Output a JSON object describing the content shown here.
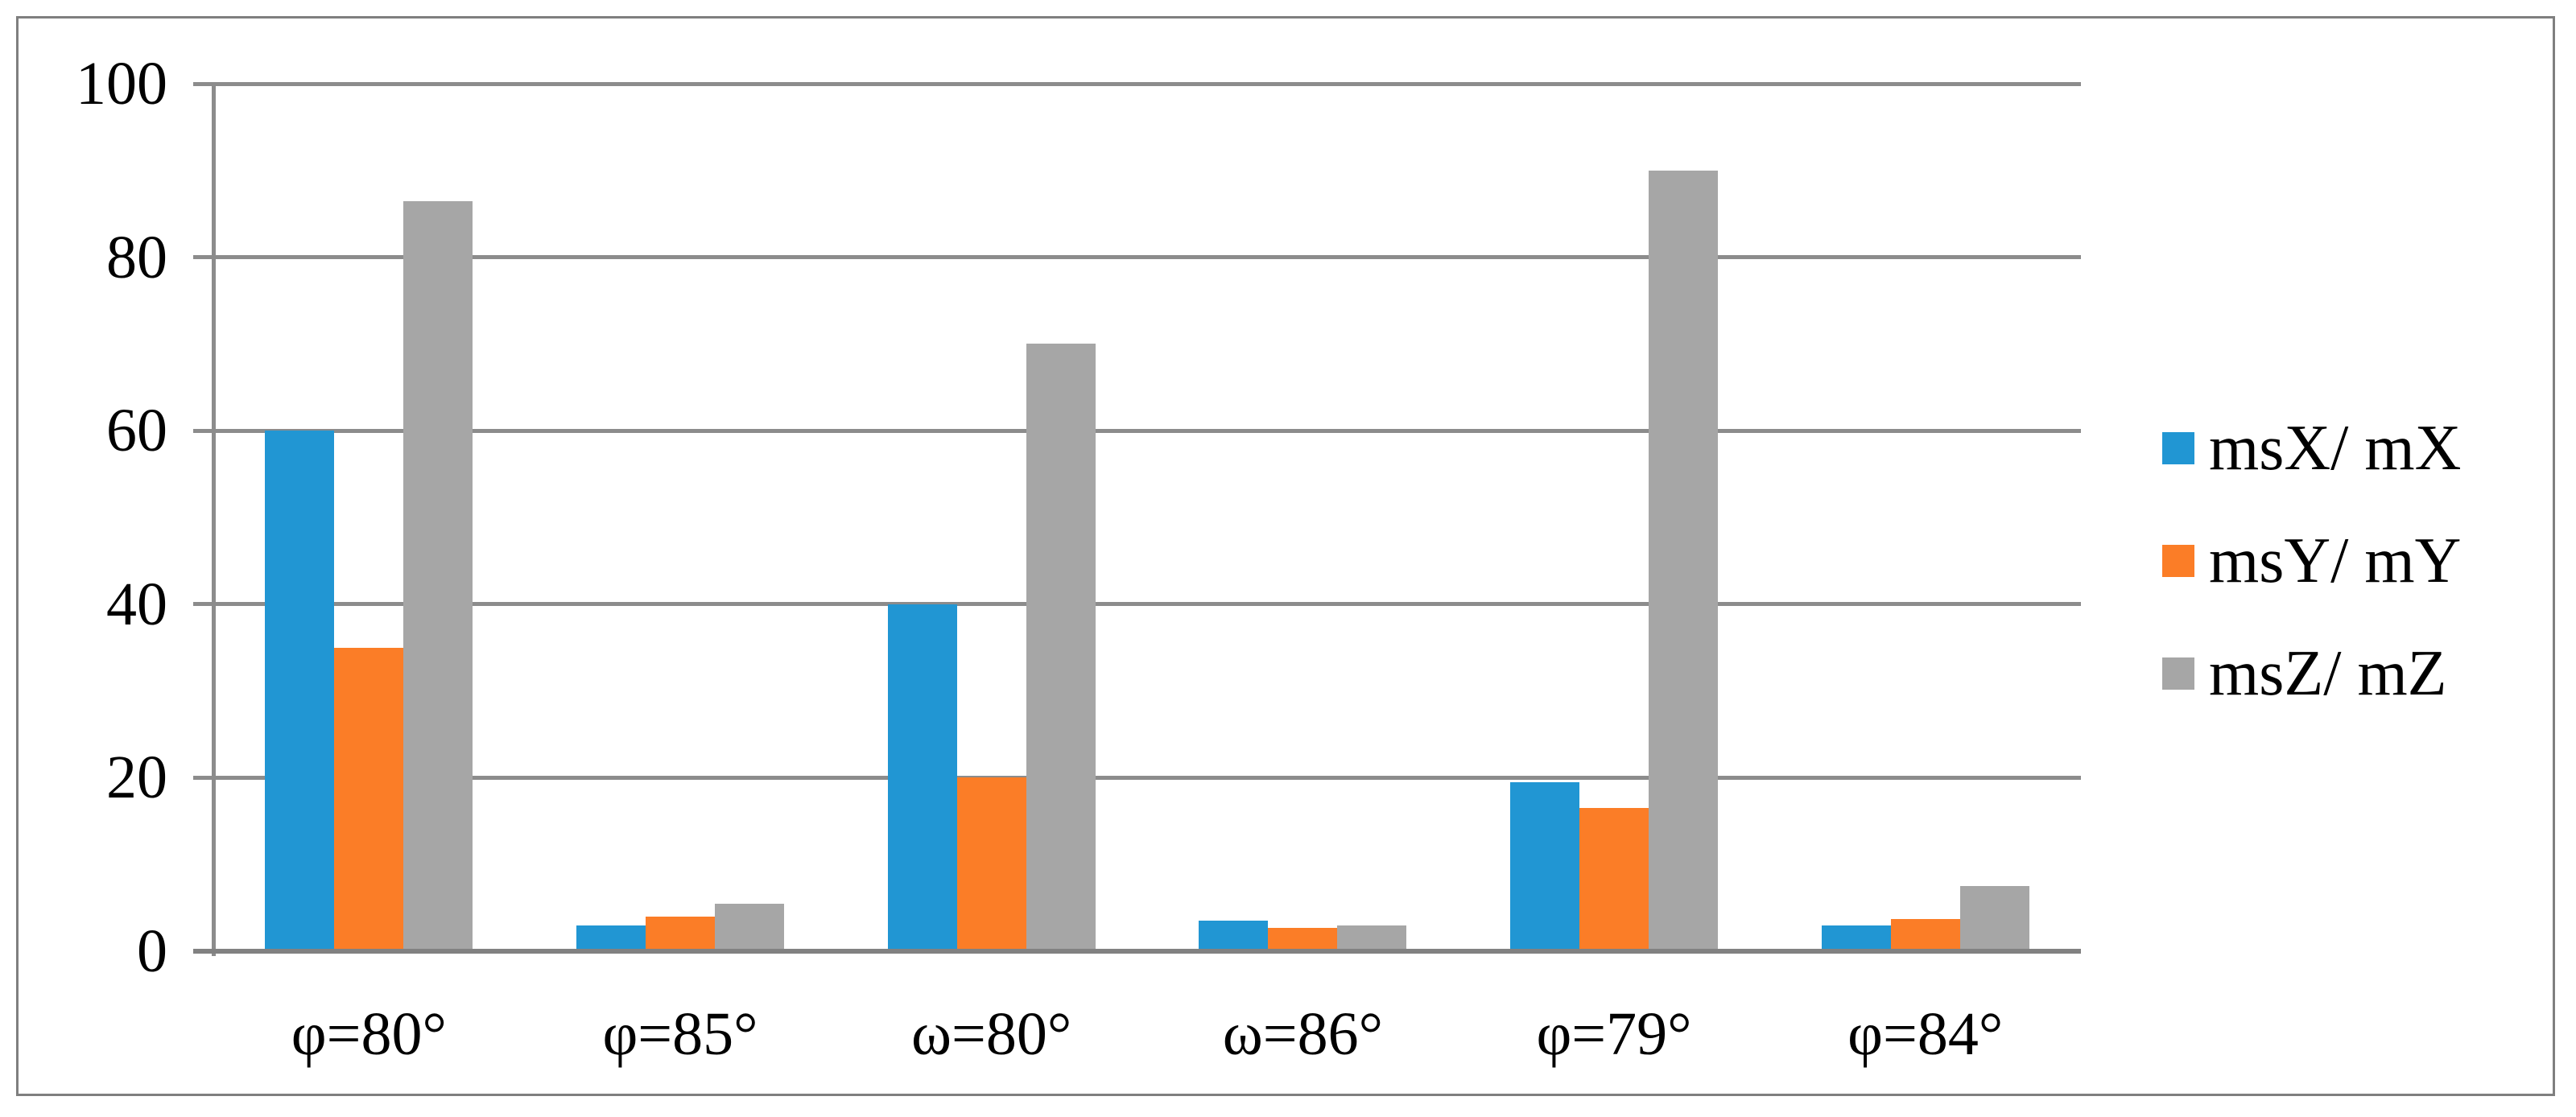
{
  "chart_data": {
    "type": "bar",
    "title": "",
    "categories": [
      "φ=80°",
      "φ=85°",
      "ω=80°",
      "ω=86°",
      "φ=79°",
      "φ=84°"
    ],
    "series": [
      {
        "name": "msX/ mX",
        "color": "#2196d3",
        "values": [
          60,
          3,
          40,
          3.5,
          19.5,
          3
        ]
      },
      {
        "name": "msY/ mY",
        "color": "#fb7d27",
        "values": [
          35,
          4,
          20,
          2.7,
          16.5,
          3.7
        ]
      },
      {
        "name": "msZ/ mZ",
        "color": "#a6a6a6",
        "values": [
          86.5,
          5.5,
          70,
          3,
          90,
          7.5
        ]
      }
    ],
    "ylim": [
      0,
      100
    ],
    "yticks": [
      0,
      20,
      40,
      60,
      80,
      100
    ],
    "grid": true,
    "legend_position": "right"
  },
  "colors": {
    "gridline": "#8c8c8c",
    "axis_line": "#818181",
    "frame_border": "#7f7f7f",
    "background": "#ffffff",
    "text": "#000000"
  }
}
